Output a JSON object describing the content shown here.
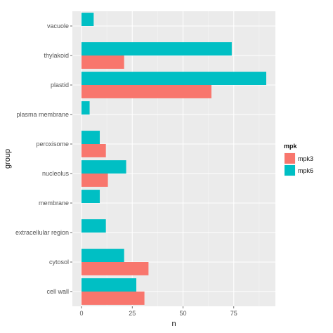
{
  "chart_data": {
    "type": "bar",
    "orientation": "horizontal",
    "position": "dodge",
    "categories": [
      "vacuole",
      "thylakoid",
      "plastid",
      "plasma membrane",
      "peroxisome",
      "nucleolus",
      "membrane",
      "extracellular region",
      "cytosol",
      "cell wall"
    ],
    "series": [
      {
        "name": "mpk3",
        "color": "#F8766D",
        "values": [
          null,
          21,
          64,
          null,
          12,
          13,
          null,
          null,
          33,
          31
        ]
      },
      {
        "name": "mpk6",
        "color": "#00BFC4",
        "values": [
          6,
          74,
          91,
          4,
          9,
          22,
          9,
          12,
          21,
          27
        ]
      }
    ],
    "xlabel": "n",
    "ylabel": "group",
    "xlim": [
      -4.5,
      95.5
    ],
    "xticks": [
      0,
      25,
      50,
      75
    ],
    "grid": true,
    "legend": {
      "title": "mpk",
      "position": "right",
      "items": [
        "mpk3",
        "mpk6"
      ]
    }
  }
}
